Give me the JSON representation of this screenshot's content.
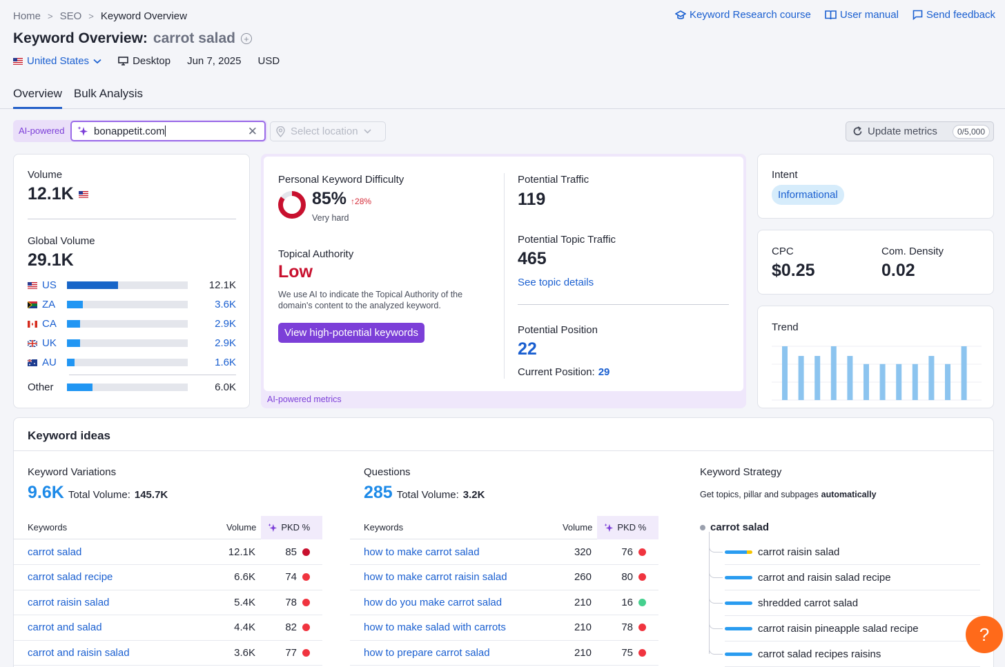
{
  "breadcrumb": [
    "Home",
    "SEO",
    "Keyword Overview"
  ],
  "top_links": {
    "course": "Keyword Research course",
    "manual": "User manual",
    "feedback": "Send feedback"
  },
  "page": {
    "title": "Keyword Overview:",
    "keyword": "carrot salad"
  },
  "meta": {
    "country": "United States",
    "device": "Desktop",
    "date": "Jun 7, 2025",
    "currency": "USD"
  },
  "tabs": [
    "Overview",
    "Bulk Analysis"
  ],
  "filters": {
    "ai_label": "AI-powered",
    "domain": "bonappetit.com",
    "location_placeholder": "Select location",
    "update_label": "Update metrics",
    "update_count": "0/5,000"
  },
  "volume": {
    "label": "Volume",
    "value": "12.1K",
    "global_label": "Global Volume",
    "global_value": "29.1K",
    "countries": [
      {
        "code": "US",
        "value": "12.1K",
        "share": 0.42
      },
      {
        "code": "ZA",
        "value": "3.6K",
        "share": 0.13
      },
      {
        "code": "CA",
        "value": "2.9K",
        "share": 0.11
      },
      {
        "code": "UK",
        "value": "2.9K",
        "share": 0.11
      },
      {
        "code": "AU",
        "value": "1.6K",
        "share": 0.06
      }
    ],
    "other": {
      "label": "Other",
      "value": "6.0K",
      "share": 0.21
    }
  },
  "ai_metrics": {
    "pkd_label": "Personal Keyword Difficulty",
    "pkd_value": "85%",
    "pkd_change": "↑28%",
    "pkd_level": "Very hard",
    "pkd_fraction": 0.85,
    "ta_label": "Topical Authority",
    "ta_value": "Low",
    "ta_desc": "We use AI to indicate the Topical Authority of the domain's content to the analyzed keyword.",
    "button": "View high-potential keywords",
    "traffic_label": "Potential Traffic",
    "traffic_value": "119",
    "topic_traffic_label": "Potential Topic Traffic",
    "topic_traffic_value": "465",
    "topic_link": "See topic details",
    "position_label": "Potential Position",
    "position_value": "22",
    "current_position_label": "Current Position:",
    "current_position_value": "29",
    "footer": "AI-powered metrics"
  },
  "intent": {
    "label": "Intent",
    "value": "Informational"
  },
  "cpc": {
    "label": "CPC",
    "value": "$0.25",
    "density_label": "Com. Density",
    "density_value": "0.02"
  },
  "trend": {
    "label": "Trend",
    "values": [
      1.0,
      0.82,
      0.82,
      1.0,
      0.82,
      0.67,
      0.67,
      0.67,
      0.67,
      0.82,
      0.67,
      1.0
    ]
  },
  "ideas": {
    "title": "Keyword ideas",
    "variations": {
      "label": "Keyword Variations",
      "count": "9.6K",
      "total_label": "Total Volume:",
      "total": "145.7K",
      "cols": [
        "Keywords",
        "Volume",
        "PKD %"
      ],
      "rows": [
        {
          "kw": "carrot salad",
          "vol": "12.1K",
          "pkd": "85",
          "level": "dred"
        },
        {
          "kw": "carrot salad recipe",
          "vol": "6.6K",
          "pkd": "74",
          "level": "red"
        },
        {
          "kw": "carrot raisin salad",
          "vol": "5.4K",
          "pkd": "78",
          "level": "red"
        },
        {
          "kw": "carrot and salad",
          "vol": "4.4K",
          "pkd": "82",
          "level": "red"
        },
        {
          "kw": "carrot and raisin salad",
          "vol": "3.6K",
          "pkd": "77",
          "level": "red"
        }
      ]
    },
    "questions": {
      "label": "Questions",
      "count": "285",
      "total_label": "Total Volume:",
      "total": "3.2K",
      "cols": [
        "Keywords",
        "Volume",
        "PKD %"
      ],
      "rows": [
        {
          "kw": "how to make carrot salad",
          "vol": "320",
          "pkd": "76",
          "level": "red"
        },
        {
          "kw": "how to make carrot raisin salad",
          "vol": "260",
          "pkd": "80",
          "level": "red"
        },
        {
          "kw": "how do you make carrot salad",
          "vol": "210",
          "pkd": "16",
          "level": "green"
        },
        {
          "kw": "how to make salad with carrots",
          "vol": "210",
          "pkd": "78",
          "level": "red"
        },
        {
          "kw": "how to prepare carrot salad",
          "vol": "210",
          "pkd": "75",
          "level": "red"
        }
      ]
    },
    "strategy": {
      "label": "Keyword Strategy",
      "desc": "Get topics, pillar and subpages",
      "desc_bold": "automatically",
      "root": "carrot salad",
      "items": [
        "carrot raisin salad",
        "carrot and raisin salad recipe",
        "shredded carrot salad",
        "carrot raisin pineapple salad recipe",
        "carrot salad recipes raisins"
      ]
    }
  },
  "colors": {
    "accent": "#1a5fd0",
    "purple": "#7c3fd8",
    "red": "#c8102e",
    "bar": "#2196f3"
  }
}
